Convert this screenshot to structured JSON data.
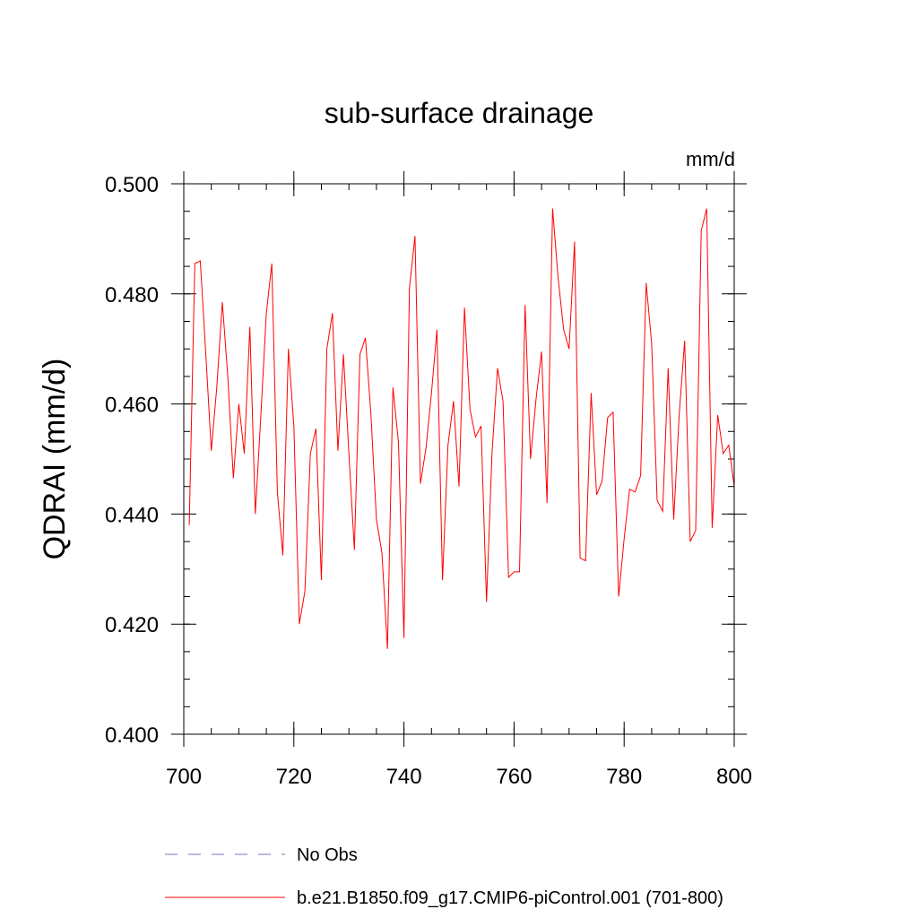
{
  "chart_data": {
    "type": "line",
    "title": "sub-surface drainage",
    "units_label": "mm/d",
    "xlabel": "",
    "ylabel": "QDRAI  (mm/d)",
    "xlim": [
      700,
      800
    ],
    "ylim": [
      0.4,
      0.5
    ],
    "x_ticks": [
      700,
      720,
      740,
      760,
      780,
      800
    ],
    "x_tick_labels": [
      "700",
      "720",
      "740",
      "760",
      "780",
      "800"
    ],
    "y_ticks": [
      0.4,
      0.42,
      0.44,
      0.46,
      0.48,
      0.5
    ],
    "y_tick_labels": [
      "0.400",
      "0.420",
      "0.440",
      "0.460",
      "0.480",
      "0.500"
    ],
    "x_minor_step": 5,
    "y_minor_step": 0.005,
    "grid": false,
    "legend_position": "bottom",
    "series": [
      {
        "name": "b.e21.B1850.f09_g17.CMIP6-piControl.001 (701-800)",
        "color": "#ff0000",
        "style": "solid",
        "x": [
          701,
          702,
          703,
          704,
          705,
          706,
          707,
          708,
          709,
          710,
          711,
          712,
          713,
          714,
          715,
          716,
          717,
          718,
          719,
          720,
          721,
          722,
          723,
          724,
          725,
          726,
          727,
          728,
          729,
          730,
          731,
          732,
          733,
          734,
          735,
          736,
          737,
          738,
          739,
          740,
          741,
          742,
          743,
          744,
          745,
          746,
          747,
          748,
          749,
          750,
          751,
          752,
          753,
          754,
          755,
          756,
          757,
          758,
          759,
          760,
          761,
          762,
          763,
          764,
          765,
          766,
          767,
          768,
          769,
          770,
          771,
          772,
          773,
          774,
          775,
          776,
          777,
          778,
          779,
          780,
          781,
          782,
          783,
          784,
          785,
          786,
          787,
          788,
          789,
          790,
          791,
          792,
          793,
          794,
          795,
          796,
          797,
          798,
          799,
          800
        ],
        "values": [
          0.438,
          0.4855,
          0.486,
          0.469,
          0.4515,
          0.463,
          0.4785,
          0.465,
          0.4465,
          0.46,
          0.451,
          0.474,
          0.44,
          0.458,
          0.4765,
          0.4855,
          0.444,
          0.4325,
          0.47,
          0.456,
          0.42,
          0.426,
          0.451,
          0.4555,
          0.428,
          0.47,
          0.4765,
          0.4515,
          0.469,
          0.451,
          0.4335,
          0.469,
          0.472,
          0.458,
          0.439,
          0.433,
          0.4155,
          0.463,
          0.453,
          0.4175,
          0.481,
          0.4905,
          0.4455,
          0.452,
          0.462,
          0.4735,
          0.428,
          0.4525,
          0.4605,
          0.445,
          0.4775,
          0.459,
          0.454,
          0.456,
          0.424,
          0.451,
          0.4665,
          0.4605,
          0.4285,
          0.4295,
          0.4295,
          0.478,
          0.45,
          0.461,
          0.4695,
          0.442,
          0.4955,
          0.483,
          0.4735,
          0.47,
          0.4895,
          0.432,
          0.4315,
          0.462,
          0.4435,
          0.446,
          0.4575,
          0.4585,
          0.425,
          0.4355,
          0.4445,
          0.444,
          0.447,
          0.482,
          0.471,
          0.4425,
          0.4405,
          0.4665,
          0.439,
          0.458,
          0.4715,
          0.435,
          0.437,
          0.4915,
          0.4955,
          0.4375,
          0.458,
          0.451,
          0.4525,
          0.445
        ]
      }
    ],
    "legend": [
      {
        "label": "No Obs",
        "color": "#8070c0",
        "style": "dashed"
      },
      {
        "label": "b.e21.B1850.f09_g17.CMIP6-piControl.001 (701-800)",
        "color": "#ff0000",
        "style": "solid"
      }
    ]
  }
}
